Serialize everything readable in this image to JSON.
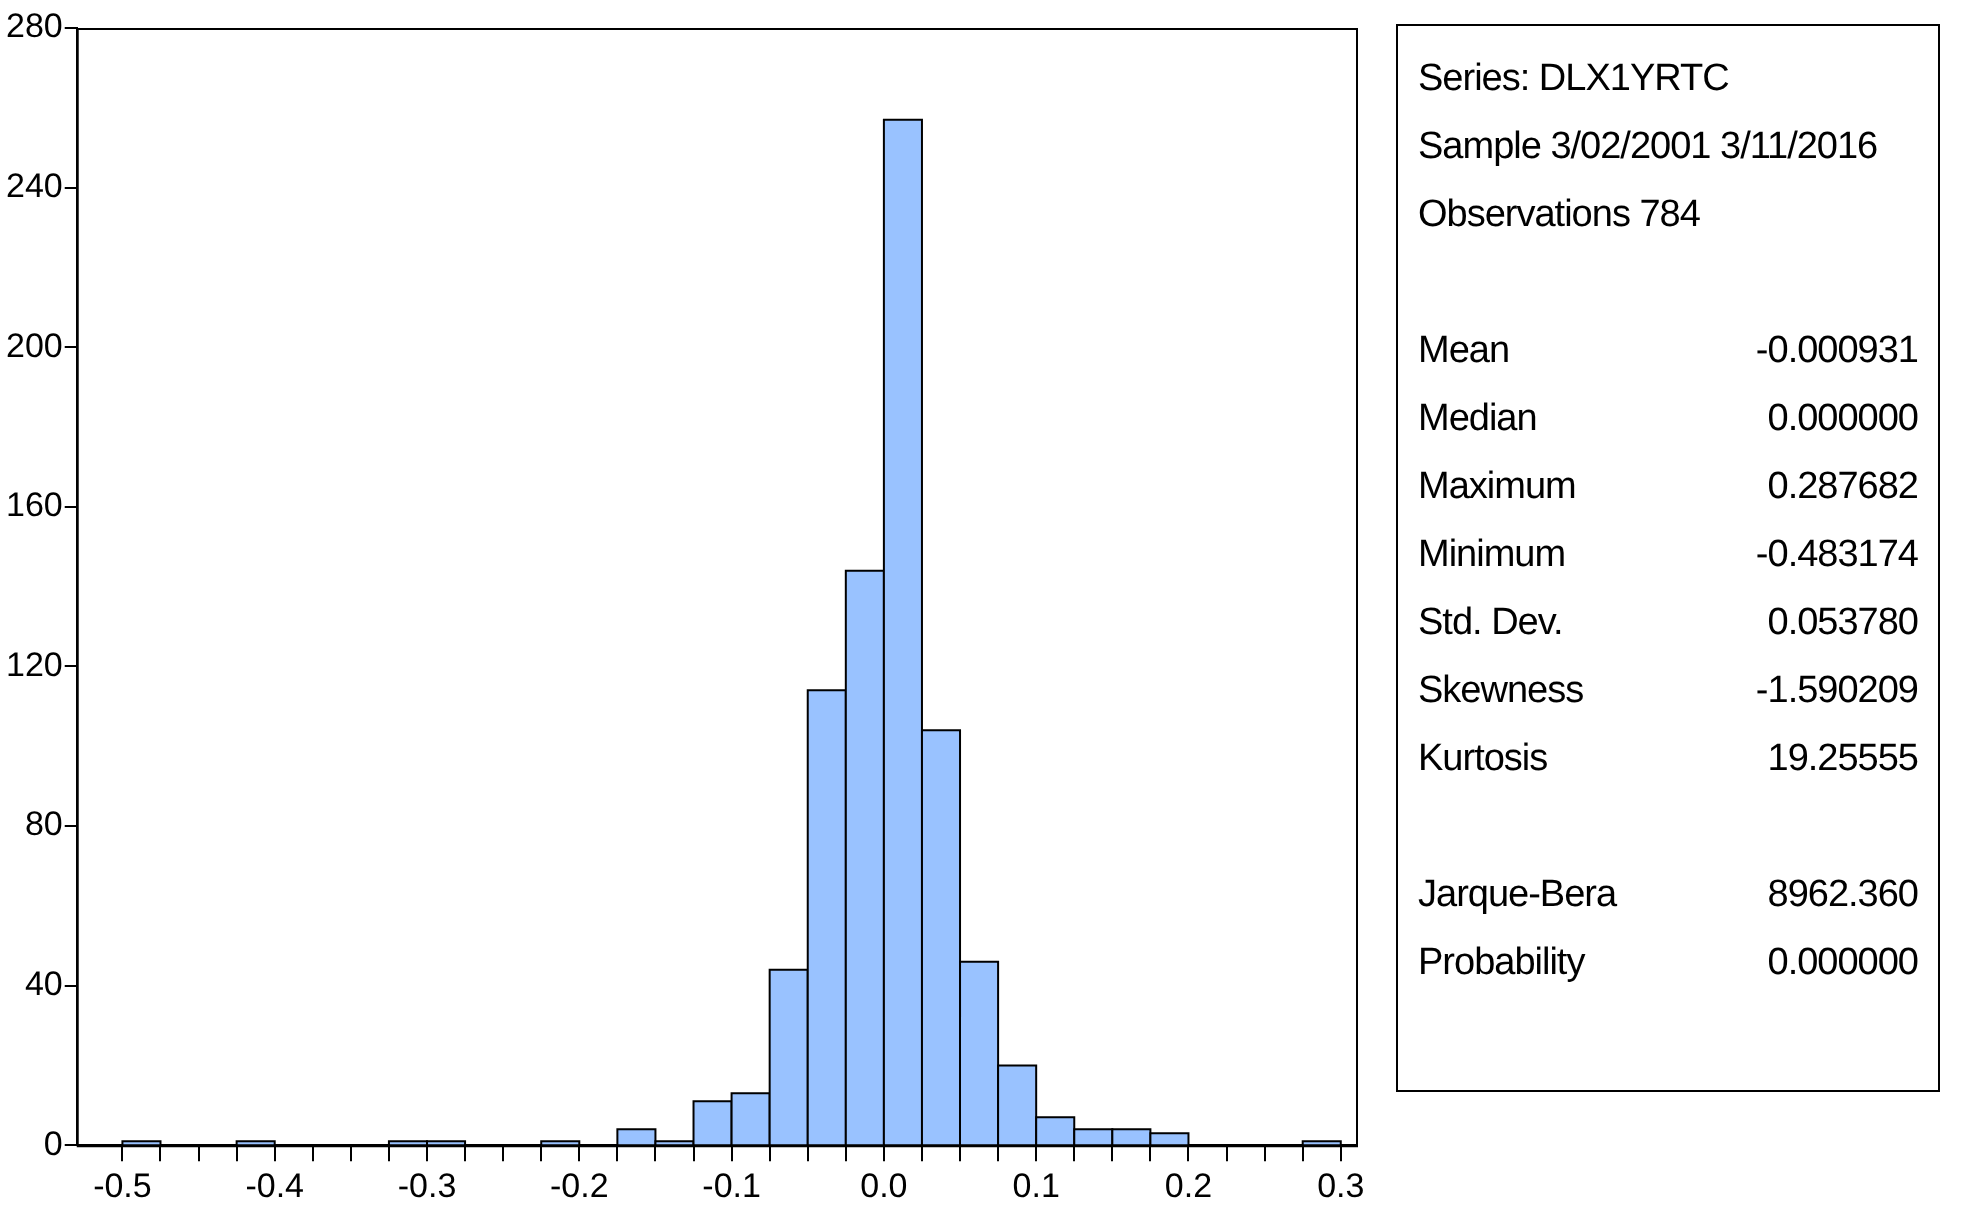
{
  "chart_data": {
    "type": "histogram",
    "bins": [
      -0.5,
      -0.475,
      -0.45,
      -0.425,
      -0.4,
      -0.375,
      -0.35,
      -0.325,
      -0.3,
      -0.275,
      -0.25,
      -0.225,
      -0.2,
      -0.175,
      -0.15,
      -0.125,
      -0.1,
      -0.075,
      -0.05,
      -0.025,
      0,
      0.025,
      0.05,
      0.075,
      0.1,
      0.125,
      0.15,
      0.175,
      0.2,
      0.225,
      0.25,
      0.275,
      0.3
    ],
    "values": [
      1,
      0,
      0,
      1,
      0,
      0,
      0,
      1,
      1,
      0,
      0,
      1,
      0,
      4,
      1,
      11,
      13,
      44,
      114,
      144,
      257,
      104,
      46,
      20,
      7,
      4,
      4,
      3,
      0,
      0,
      0,
      1
    ],
    "color": "#99c2ff",
    "xlim": [
      -0.53,
      0.31
    ],
    "xticks": [
      {
        "value": -0.5,
        "label": "-0.5"
      },
      {
        "value": -0.475,
        "label": null
      },
      {
        "value": -0.45,
        "label": null
      },
      {
        "value": -0.425,
        "label": null
      },
      {
        "value": -0.4,
        "label": "-0.4"
      },
      {
        "value": -0.375,
        "label": null
      },
      {
        "value": -0.35,
        "label": null
      },
      {
        "value": -0.325,
        "label": null
      },
      {
        "value": -0.3,
        "label": "-0.3"
      },
      {
        "value": -0.275,
        "label": null
      },
      {
        "value": -0.25,
        "label": null
      },
      {
        "value": -0.225,
        "label": null
      },
      {
        "value": -0.2,
        "label": "-0.2"
      },
      {
        "value": -0.175,
        "label": null
      },
      {
        "value": -0.15,
        "label": null
      },
      {
        "value": -0.125,
        "label": null
      },
      {
        "value": -0.1,
        "label": "-0.1"
      },
      {
        "value": -0.075,
        "label": null
      },
      {
        "value": -0.05,
        "label": null
      },
      {
        "value": -0.025,
        "label": null
      },
      {
        "value": 0,
        "label": "0.0"
      },
      {
        "value": 0.025,
        "label": null
      },
      {
        "value": 0.05,
        "label": null
      },
      {
        "value": 0.075,
        "label": null
      },
      {
        "value": 0.1,
        "label": "0.1"
      },
      {
        "value": 0.125,
        "label": null
      },
      {
        "value": 0.15,
        "label": null
      },
      {
        "value": 0.175,
        "label": null
      },
      {
        "value": 0.2,
        "label": "0.2"
      },
      {
        "value": 0.225,
        "label": null
      },
      {
        "value": 0.25,
        "label": null
      },
      {
        "value": 0.275,
        "label": null
      },
      {
        "value": 0.3,
        "label": "0.3"
      }
    ],
    "ylim": [
      0,
      280
    ],
    "yticks": [
      0,
      40,
      80,
      120,
      160,
      200,
      240,
      280
    ],
    "legend": false,
    "annotations": [
      "Series: DLX1YRTC",
      "Sample 3/02/2001 3/11/2016",
      "Observations 784",
      "Mean\t-0.000931",
      "Median\t0.000000",
      "Maximum\t0.287682",
      "Minimum\t-0.483174",
      "Std. Dev.\t0.053780",
      "Skewness\t-1.590209",
      "Kurtosis\t19.25555",
      "Jarque-Bera\t8962.360",
      "Probability\t0.000000"
    ]
  }
}
